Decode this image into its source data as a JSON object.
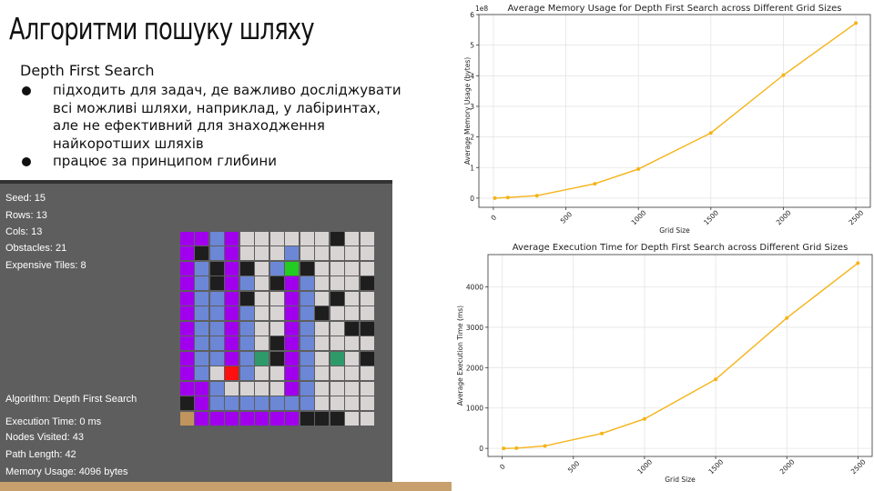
{
  "slide": {
    "title": "Алгоритми пошуку шляху",
    "subtitle": "Depth First Search",
    "bullets": [
      "підходить для задач, де важливо досліджувати всі можливі шляхи, наприклад, у лабіринтах, але не ефективний для знаходження найкоротших шляхів",
      "працює за принципом глибини"
    ]
  },
  "app": {
    "seed": "Seed: 15",
    "rows": "Rows: 13",
    "cols": "Cols: 13",
    "obstacles": "Obstacles: 21",
    "expensive_tiles": "Expensive Tiles: 8",
    "algorithm": "Algorithm: Depth First Search",
    "execution_time": "Execution Time: 0 ms",
    "nodes_visited": "Nodes Visited: 43",
    "path_length": "Path Length: 42",
    "memory_usage": "Memory Usage: 4096 bytes",
    "grid": [
      "PPBPEEEEEEWEE",
      "PWBPEEEBEEEEE",
      "PBWPWEBGWEEEE",
      "PBWPBEWPBEEEW",
      "PBBPWEEPBEWEE",
      "PBBPBEEPBWEEE",
      "PBBPBEEPBEEWW",
      "PBBPBEWPBEEEE",
      "PBBPBTWPBETEW",
      "PBERBEEPBEEEE",
      "PPBEEEEPBEEEE",
      "WPBBBBBBBEEEE",
      "SPPPPPPPWWWEE"
    ],
    "cell_colors": {
      "E": "#d8d4d4",
      "W": "#1e1e1e",
      "P": "#a000ee",
      "B": "#6b87d6",
      "G": "#22cc22",
      "T": "#2e9a6a",
      "R": "#ff1010",
      "S": "#c1945e"
    }
  },
  "chart_data": [
    {
      "type": "line",
      "title": "Average Memory Usage for Depth First Search across Different Grid Sizes",
      "xlabel": "Grid Size",
      "ylabel": "Average Memory Usage (bytes)",
      "y_multiplier_label": "1e8",
      "x": [
        10,
        100,
        300,
        700,
        1000,
        1500,
        2000,
        2500
      ],
      "series": [
        {
          "values": [
            0.0,
            0.02,
            0.08,
            0.47,
            0.95,
            2.13,
            4.02,
            5.72
          ]
        }
      ],
      "xlim": [
        -100,
        2600
      ],
      "ylim": [
        -0.3,
        6
      ],
      "xticks": [
        0,
        500,
        1000,
        1500,
        2000,
        2500
      ],
      "yticks": [
        0,
        1,
        2,
        3,
        4,
        5,
        6
      ],
      "grid": true,
      "color": "#f5b317"
    },
    {
      "type": "line",
      "title": "Average Execution Time for Depth First Search across Different Grid Sizes",
      "xlabel": "Grid Size",
      "ylabel": "Average Execution Time (ms)",
      "x": [
        10,
        100,
        300,
        700,
        1000,
        1500,
        2000,
        2500
      ],
      "series": [
        {
          "values": [
            0,
            5,
            60,
            370,
            730,
            1710,
            3230,
            4590
          ]
        }
      ],
      "xlim": [
        -100,
        2600
      ],
      "ylim": [
        -200,
        4800
      ],
      "xticks": [
        0,
        500,
        1000,
        1500,
        2000,
        2500
      ],
      "yticks": [
        0,
        1000,
        2000,
        3000,
        4000
      ],
      "grid": true,
      "color": "#f5b317"
    }
  ]
}
